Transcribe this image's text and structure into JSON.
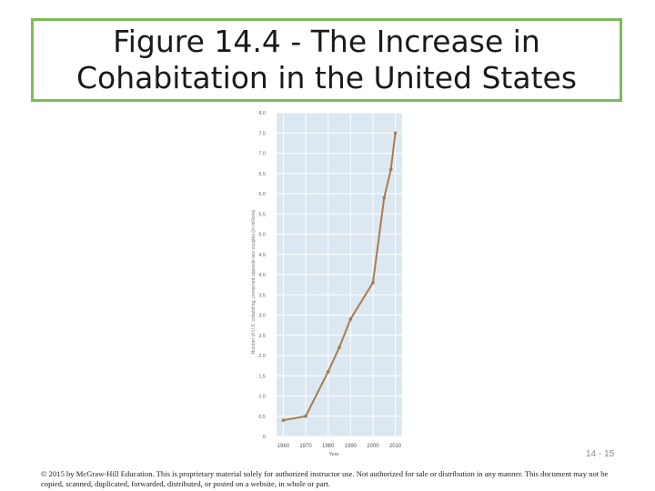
{
  "title": "Figure 14.4 - The Increase in\nCohabitation in the United States",
  "slide_number": "14 - 15",
  "copyright": "© 2015 by McGraw-Hill Education. This is proprietary material solely for authorized instructor use. Not authorized for sale or distribution in any manner. This document may not be copied, scanned, duplicated, forwarded, distributed, or posted on a website, in whole or part.",
  "colors": {
    "title_border": "#7dbb5a",
    "plot_bg": "#dbe8f1",
    "line": "#a67c52",
    "grid": "#ffffff"
  },
  "chart_data": {
    "type": "line",
    "title": "",
    "xlabel": "Year",
    "ylabel": "Number of U.S. cohabiting, unmarried opposite-sex couples (in millions)",
    "x": [
      1960,
      1970,
      1980,
      1985,
      1990,
      2000,
      2005,
      2008,
      2010
    ],
    "y": [
      0.4,
      0.5,
      1.6,
      2.2,
      2.9,
      3.8,
      5.9,
      6.6,
      7.5
    ],
    "xticks": [
      "1960",
      "1970",
      "1980",
      "1990",
      "2000",
      "2010"
    ],
    "yticks": [
      "0",
      "0.5",
      "1.0",
      "1.5",
      "2.0",
      "2.5",
      "3.0",
      "3.5",
      "4.0",
      "4.5",
      "5.0",
      "5.5",
      "6.0",
      "6.5",
      "7.0",
      "7.5",
      "8.0"
    ],
    "xlim": [
      1957,
      2013
    ],
    "ylim": [
      0,
      8
    ],
    "grid": true
  }
}
